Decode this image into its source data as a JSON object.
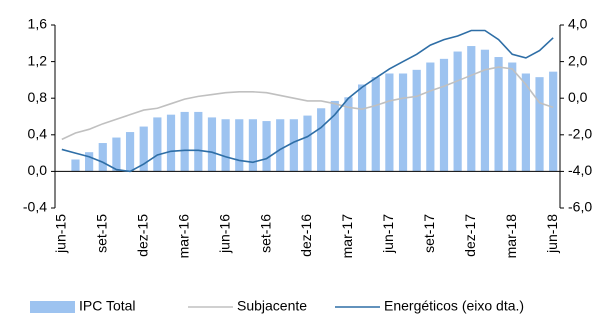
{
  "chart_data": {
    "type": "combo",
    "categories": [
      "jun-15",
      null,
      null,
      "set-15",
      null,
      null,
      "dez-15",
      null,
      null,
      "mar-16",
      null,
      null,
      "jun-16",
      null,
      null,
      "set-16",
      null,
      null,
      "dez-16",
      null,
      null,
      "mar-17",
      null,
      null,
      "jun-17",
      null,
      null,
      "set-17",
      null,
      null,
      "dez-17",
      null,
      null,
      "mar-18",
      null,
      null,
      "jun-18"
    ],
    "series": [
      {
        "name": "IPC Total",
        "type": "bar",
        "color": "#9dc3f0",
        "values": [
          null,
          0.13,
          0.21,
          0.31,
          0.37,
          0.43,
          0.49,
          0.59,
          0.62,
          0.65,
          0.65,
          0.59,
          0.57,
          0.57,
          0.57,
          0.55,
          0.57,
          0.57,
          0.61,
          0.69,
          0.77,
          0.81,
          0.95,
          1.03,
          1.07,
          1.07,
          1.11,
          1.19,
          1.23,
          1.31,
          1.37,
          1.33,
          1.25,
          1.19,
          1.07,
          1.03,
          1.09
        ]
      },
      {
        "name": "Subjacente",
        "type": "line",
        "color": "#c0c0c0",
        "values": [
          0.35,
          0.42,
          0.46,
          0.52,
          0.57,
          0.62,
          0.67,
          0.69,
          0.74,
          0.79,
          0.82,
          0.84,
          0.86,
          0.87,
          0.87,
          0.86,
          0.83,
          0.8,
          0.77,
          0.77,
          0.74,
          0.7,
          0.68,
          0.72,
          0.77,
          0.8,
          0.82,
          0.88,
          0.93,
          0.99,
          1.05,
          1.11,
          1.14,
          1.12,
          0.95,
          0.75,
          0.7
        ]
      },
      {
        "name": "Energéticos (eixo dta.)",
        "type": "line",
        "axis": "y2",
        "color": "#2e6ea6",
        "values": [
          -2.8,
          -3.0,
          -3.2,
          -3.5,
          -3.9,
          -4.0,
          -3.6,
          -3.1,
          -2.9,
          -2.85,
          -2.85,
          -2.95,
          -3.2,
          -3.4,
          -3.5,
          -3.3,
          -2.8,
          -2.4,
          -2.1,
          -1.6,
          -0.9,
          0.0,
          0.6,
          1.1,
          1.6,
          2.0,
          2.4,
          2.9,
          3.2,
          3.4,
          3.7,
          3.7,
          3.2,
          2.4,
          2.2,
          2.6,
          3.3
        ]
      }
    ],
    "ylim": [
      -0.4,
      1.6
    ],
    "yticks": [
      {
        "value": -0.4,
        "label": "-0,4"
      },
      {
        "value": 0,
        "label": "0,0"
      },
      {
        "value": 0.4,
        "label": "0,4"
      },
      {
        "value": 0.8,
        "label": "0,8"
      },
      {
        "value": 1.2,
        "label": "1,2"
      },
      {
        "value": 1.6,
        "label": "1,6"
      }
    ],
    "y2lim": [
      -6,
      4
    ],
    "y2ticks": [
      {
        "value": -6,
        "label": "-6,0"
      },
      {
        "value": -4,
        "label": "-4,0"
      },
      {
        "value": -2,
        "label": "-2,0"
      },
      {
        "value": 0,
        "label": "0,0"
      },
      {
        "value": 2,
        "label": "2,0"
      },
      {
        "value": 4,
        "label": "4,0"
      }
    ],
    "grid": false,
    "legend": "bottom"
  }
}
